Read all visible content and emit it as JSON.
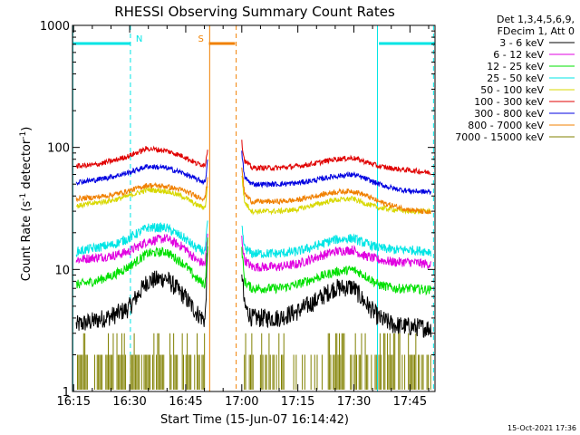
{
  "chart_data": {
    "type": "line",
    "title": "RHESSI Observing Summary Count Rates",
    "xlabel": "Start Time (15-Jun-07 16:14:42)",
    "ylabel_main": "Count Rate (s",
    "ylabel_sup1": "-1",
    "ylabel_mid": " detector",
    "ylabel_sup2": "-1",
    "ylabel_end": ")",
    "yscale": "log",
    "ylim": [
      1,
      1000
    ],
    "xlim_minutes": [
      0,
      97
    ],
    "x_ticks": [
      {
        "m": 0.3,
        "label": "16:15"
      },
      {
        "m": 15.3,
        "label": "16:30"
      },
      {
        "m": 30.3,
        "label": "16:45"
      },
      {
        "m": 45.3,
        "label": "17:00"
      },
      {
        "m": 60.3,
        "label": "17:15"
      },
      {
        "m": 75.3,
        "label": "17:30"
      },
      {
        "m": 90.3,
        "label": "17:45"
      }
    ],
    "y_ticks": [
      {
        "v": 1,
        "label": "1"
      },
      {
        "v": 10,
        "label": "10"
      },
      {
        "v": 100,
        "label": "100"
      },
      {
        "v": 1000,
        "label": "1000"
      }
    ],
    "legend_header": [
      "Det 1,3,4,5,6,9,",
      "FDecim 1, Att 0"
    ],
    "legend_placement": "right",
    "flags": [
      {
        "label": "N",
        "start": 0,
        "end": 15.5,
        "color": "#00e5e5"
      },
      {
        "label": "N",
        "end": 97,
        "start": 82,
        "color": "#00e5e5"
      },
      {
        "label": "S",
        "start": 36.5,
        "end": 43.5,
        "color": "#f08000"
      }
    ],
    "markers": [
      {
        "m": 0.1,
        "color": "#00e5e5",
        "style": "solid"
      },
      {
        "m": 15.5,
        "color": "#00e5e5",
        "style": "dash"
      },
      {
        "m": 36.7,
        "color": "#f08000",
        "style": "solid"
      },
      {
        "m": 43.8,
        "color": "#f08000",
        "style": "dash"
      },
      {
        "m": 81.6,
        "color": "#00e5e5",
        "style": "solid"
      },
      {
        "m": 96.6,
        "color": "#00e5e5",
        "style": "dash"
      }
    ],
    "gap": {
      "start": 36.7,
      "end": 45.0
    },
    "series": [
      {
        "name": "3 - 6 keV",
        "color": "#000000",
        "segments": [
          {
            "x": [
              1,
              6,
              11,
              15,
              20,
              25,
              30,
              33,
              35.5,
              36.2
            ],
            "y": [
              3.5,
              3.8,
              4.2,
              4.8,
              8.0,
              8.5,
              6.0,
              4.5,
              3.8,
              15
            ]
          },
          {
            "x": [
              45.3,
              46,
              48,
              55,
              60,
              65,
              70,
              75,
              78,
              82,
              86,
              90,
              96
            ],
            "y": [
              10,
              5,
              4.0,
              4.0,
              4.5,
              5.5,
              7.0,
              7.2,
              5.5,
              4.0,
              3.5,
              3.4,
              3.3
            ]
          }
        ]
      },
      {
        "name": "6 - 12 keV",
        "color": "#e000e0",
        "segments": [
          {
            "x": [
              1,
              6,
              11,
              15,
              20,
              25,
              30,
              33,
              35.5,
              36.2
            ],
            "y": [
              12,
              12.5,
              13,
              14,
              17,
              18,
              15,
              12,
              11,
              20
            ]
          },
          {
            "x": [
              45.3,
              46,
              48,
              55,
              60,
              65,
              70,
              75,
              78,
              82,
              86,
              90,
              96
            ],
            "y": [
              18,
              12,
              10.5,
              10.5,
              11,
              12.5,
              14,
              14.5,
              13,
              12,
              11.5,
              11.5,
              11
            ]
          }
        ]
      },
      {
        "name": "12 - 25 keV",
        "color": "#00e000",
        "segments": [
          {
            "x": [
              1,
              6,
              11,
              15,
              20,
              25,
              30,
              33,
              35.5,
              36.2
            ],
            "y": [
              7.5,
              8.0,
              9.0,
              10.5,
              13.5,
              14,
              11,
              8.5,
              7.5,
              18
            ]
          },
          {
            "x": [
              45.3,
              46,
              48,
              55,
              60,
              65,
              70,
              75,
              78,
              82,
              86,
              90,
              96
            ],
            "y": [
              15,
              8,
              7.0,
              7.0,
              7.5,
              8.5,
              9.5,
              10,
              9,
              7.5,
              7,
              7,
              6.8
            ]
          }
        ]
      },
      {
        "name": "25 - 50 keV",
        "color": "#00e5e5",
        "segments": [
          {
            "x": [
              1,
              6,
              11,
              15,
              20,
              25,
              30,
              33,
              35.5,
              36.2
            ],
            "y": [
              14,
              15,
              16,
              18,
              22,
              22,
              18,
              15,
              14,
              25
            ]
          },
          {
            "x": [
              45.3,
              46,
              48,
              55,
              60,
              65,
              70,
              75,
              78,
              82,
              86,
              90,
              96
            ],
            "y": [
              22,
              15,
              13.5,
              13.5,
              14,
              15.5,
              17.5,
              18,
              16.5,
              15,
              14.5,
              14.5,
              14
            ]
          }
        ]
      },
      {
        "name": "50 - 100 keV",
        "color": "#d8d800",
        "segments": [
          {
            "x": [
              1,
              6,
              11,
              15,
              20,
              25,
              30,
              33,
              35.5,
              36.2
            ],
            "y": [
              33,
              35,
              37,
              40,
              45,
              44,
              39,
              34,
              32,
              50
            ]
          },
          {
            "x": [
              45.3,
              46,
              48,
              55,
              60,
              65,
              70,
              75,
              78,
              82,
              86,
              90,
              96
            ],
            "y": [
              60,
              36,
              30,
              30,
              31,
              34,
              37,
              38,
              35,
              32,
              31,
              30,
              30
            ]
          }
        ]
      },
      {
        "name": "100 - 300 keV",
        "color": "#e00000",
        "segments": [
          {
            "x": [
              1,
              6,
              11,
              15,
              20,
              25,
              30,
              33,
              35.5,
              36.2
            ],
            "y": [
              70,
              72,
              78,
              85,
              98,
              94,
              84,
              74,
              72,
              100
            ]
          },
          {
            "x": [
              45.3,
              46,
              48,
              55,
              60,
              65,
              70,
              75,
              78,
              82,
              86,
              90,
              96
            ],
            "y": [
              110,
              78,
              68,
              68,
              70,
              74,
              80,
              82,
              77,
              70,
              67,
              65,
              62
            ]
          }
        ]
      },
      {
        "name": "300 - 800 keV",
        "color": "#0000e0",
        "segments": [
          {
            "x": [
              1,
              6,
              11,
              15,
              20,
              25,
              30,
              33,
              35.5,
              36.2
            ],
            "y": [
              52,
              54,
              58,
              62,
              70,
              68,
              61,
              55,
              52,
              80
            ]
          },
          {
            "x": [
              45.3,
              46,
              48,
              55,
              60,
              65,
              70,
              75,
              78,
              82,
              86,
              90,
              96
            ],
            "y": [
              90,
              57,
              50,
              50,
              51,
              54,
              58,
              60,
              56,
              50,
              46,
              44,
              43
            ]
          }
        ]
      },
      {
        "name": "800 - 7000 keV",
        "color": "#f08000",
        "segments": [
          {
            "x": [
              1,
              6,
              11,
              15,
              20,
              25,
              30,
              33,
              35.5,
              36.2
            ],
            "y": [
              38,
              39,
              41,
              44,
              49,
              48,
              44,
              40,
              38,
              58
            ]
          },
          {
            "x": [
              45.3,
              46,
              48,
              55,
              60,
              65,
              70,
              75,
              78,
              82,
              86,
              90,
              96
            ],
            "y": [
              70,
              42,
              36,
              36,
              37,
              40,
              43,
              44,
              41,
              36,
              33,
              31,
              29
            ]
          }
        ]
      },
      {
        "name": "7000 - 15000 keV",
        "color": "#808000",
        "style": "bars",
        "segments": [
          {
            "x": [
              1,
              15,
              25,
              30,
              36
            ],
            "y": [
              2,
              2,
              2,
              2,
              2
            ]
          },
          {
            "x": [
              46,
              56,
              60,
              66,
              72,
              78,
              86,
              96
            ],
            "y": [
              2,
              2,
              2,
              2,
              2,
              2,
              2,
              2
            ]
          }
        ]
      }
    ],
    "footer_date": "15-Oct-2021 17:36"
  }
}
